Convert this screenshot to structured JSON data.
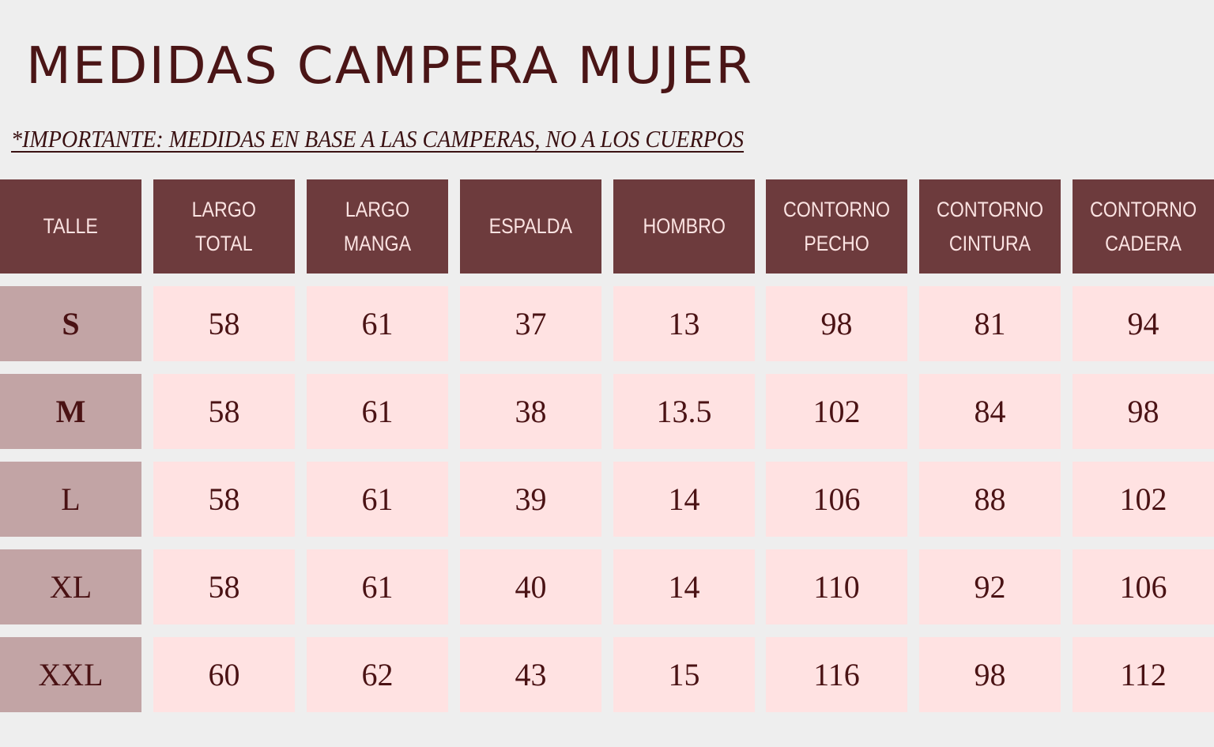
{
  "title": "MEDIDAS CAMPERA MUJER",
  "note": "*IMPORTANTE: MEDIDAS EN BASE  A LAS CAMPERAS, NO A LOS CUERPOS",
  "colors": {
    "background": "#eeeeee",
    "header_bg": "#6d3b3d",
    "header_text": "#fbe3e2",
    "size_bg": "#c2a4a5",
    "value_bg": "#ffe2e2",
    "text_dark": "#4a1214"
  },
  "table": {
    "headers": [
      "TALLE",
      "LARGO\nTOTAL",
      "LARGO\nMANGA",
      "ESPALDA",
      "HOMBRO",
      "CONTORNO\nPECHO",
      "CONTORNO\nCINTURA",
      "CONTORNO\nCADERA"
    ],
    "rows": [
      {
        "size": "S",
        "values": [
          "58",
          "61",
          "37",
          "13",
          "98",
          "81",
          "94"
        ]
      },
      {
        "size": "M",
        "values": [
          "58",
          "61",
          "38",
          "13.5",
          "102",
          "84",
          "98"
        ]
      },
      {
        "size": "L",
        "values": [
          "58",
          "61",
          "39",
          "14",
          "106",
          "88",
          "102"
        ]
      },
      {
        "size": "XL",
        "values": [
          "58",
          "61",
          "40",
          "14",
          "110",
          "92",
          "106"
        ]
      },
      {
        "size": "XXL",
        "values": [
          "60",
          "62",
          "43",
          "15",
          "116",
          "98",
          "112"
        ]
      }
    ]
  }
}
